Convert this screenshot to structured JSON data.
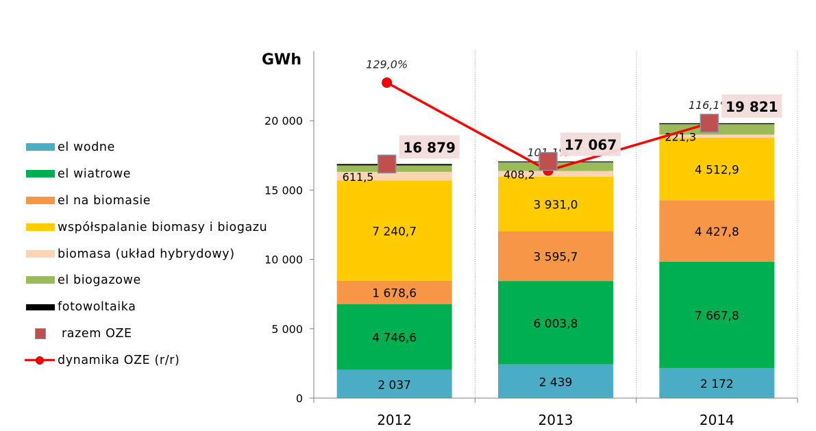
{
  "chart_data": {
    "type": "bar",
    "stacked": true,
    "unit_label": "GWh",
    "categories": [
      "2012",
      "2013",
      "2014"
    ],
    "ylim": [
      0,
      25000
    ],
    "yticks": [
      0,
      5000,
      10000,
      15000,
      20000
    ],
    "ytick_labels": [
      "0",
      "5 000",
      "10 000",
      "15 000",
      "20 000"
    ],
    "grid": "vertical-dotted",
    "legend_position": "left",
    "series": [
      {
        "name": "el wodne",
        "color": "#4bacc6",
        "values": [
          2037,
          2439,
          2172
        ],
        "labels": [
          "2 037",
          "2 439",
          "2 172"
        ]
      },
      {
        "name": "el wiatrowe",
        "color": "#00b050",
        "values": [
          4746.6,
          6003.8,
          7667.8
        ],
        "labels": [
          "4 746,6",
          "6 003,8",
          "7 667,8"
        ]
      },
      {
        "name": "el na biomasie",
        "color": "#f79646",
        "values": [
          1678.6,
          3595.7,
          4427.8
        ],
        "labels": [
          "1 678,6",
          "3 595,7",
          "4 427,8"
        ]
      },
      {
        "name": "współspalanie biomasy i biogazu",
        "color": "#ffcc00",
        "values": [
          7240.7,
          3931.0,
          4512.9
        ],
        "labels": [
          "7 240,7",
          "3 931,0",
          "4 512,9"
        ]
      },
      {
        "name": "biomasa (układ hybrydowy)",
        "color": "#fcd5b4",
        "values": [
          611.5,
          408.2,
          221.3
        ],
        "labels": [
          "611,5",
          "408,2",
          "221,3"
        ]
      },
      {
        "name": "el biogazowe",
        "color": "#9bbb59",
        "values": [
          465,
          631,
          751
        ],
        "labels": [
          "",
          "",
          ""
        ]
      },
      {
        "name": "fotowoltaika",
        "color": "#000000",
        "values": [
          100,
          58,
          68
        ],
        "labels": [
          "",
          "",
          ""
        ]
      }
    ],
    "totals": {
      "name": "razem OZE",
      "color": "#c0504d",
      "values": [
        16879,
        17067,
        19821
      ],
      "labels": [
        "16 879",
        "17 067",
        "19 821"
      ]
    },
    "dynamics": {
      "name": "dynamika OZE (r/r)",
      "color": "#ff0000",
      "values": [
        129.0,
        101.1,
        116.1
      ],
      "labels": [
        "129,0%",
        "101,1%",
        "116,1%"
      ]
    }
  }
}
